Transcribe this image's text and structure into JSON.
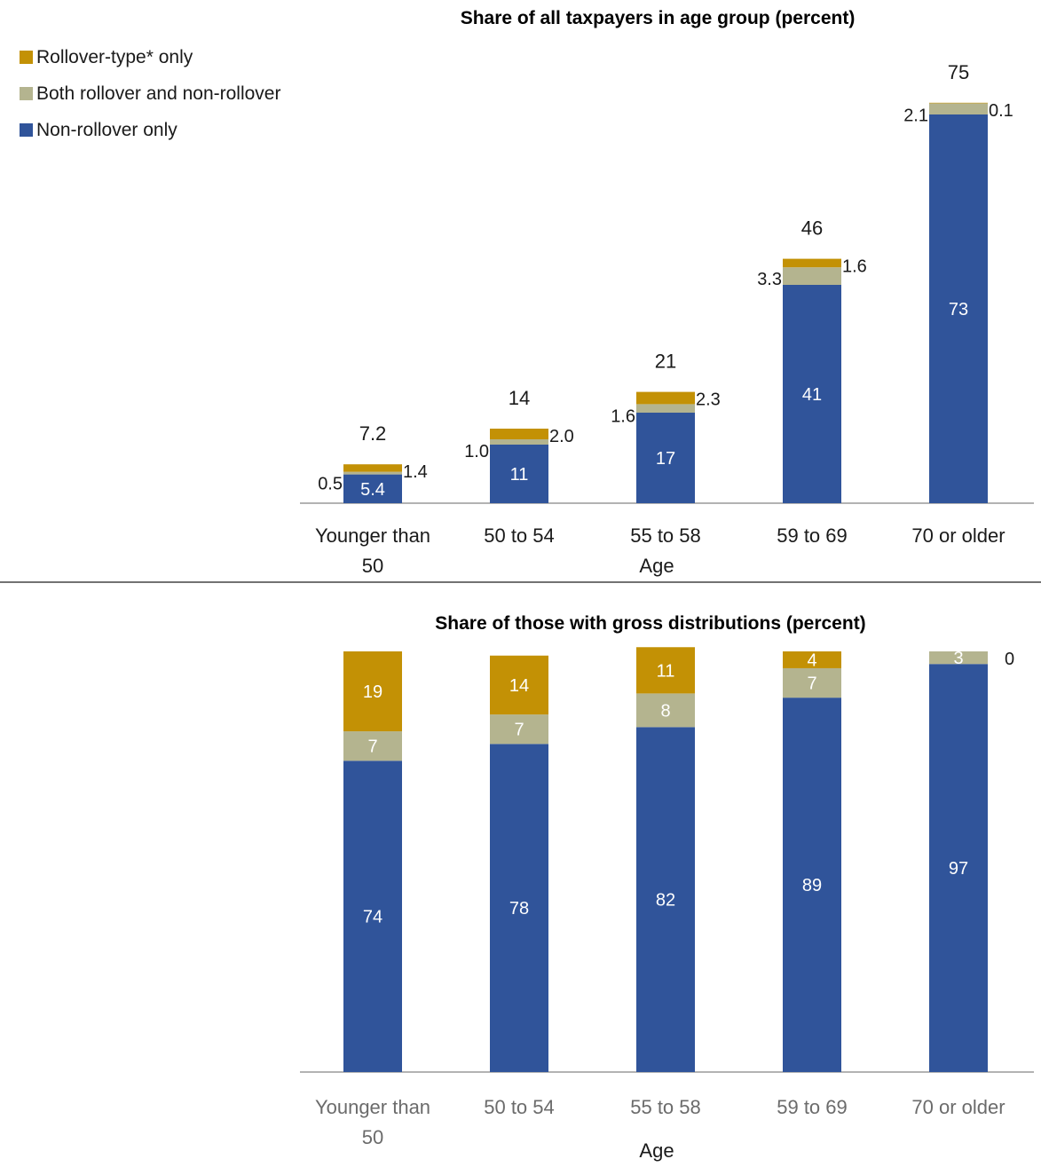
{
  "colors": {
    "non_rollover": "#30549A",
    "both": "#B4B48F",
    "rollover": "#C39105",
    "axis": "#9a9a9a",
    "text": "#1a1a1a",
    "tick_text_bottom": "#6b6b6b"
  },
  "legend": [
    {
      "key": "rollover",
      "label": "Rollover-type* only"
    },
    {
      "key": "both",
      "label": "Both rollover and non-rollover"
    },
    {
      "key": "non_rollover",
      "label": "Non-rollover only"
    }
  ],
  "chart_data": [
    {
      "type": "bar",
      "stacked": true,
      "title": "Share of all taxpayers in age group (percent)",
      "xlabel": "Age",
      "ylabel": "",
      "ylim": [
        0,
        75
      ],
      "categories": [
        "Younger than 50",
        "50 to 54",
        "55 to 58",
        "59 to 69",
        "70 or older"
      ],
      "series": [
        {
          "key": "non_rollover",
          "values": [
            5.4,
            11,
            17,
            41,
            73
          ],
          "labels": [
            "5.4",
            "11",
            "17",
            "41",
            "73"
          ]
        },
        {
          "key": "both",
          "values": [
            0.5,
            1.0,
            1.6,
            3.3,
            2.1
          ],
          "labels": [
            "0.5",
            "1.0",
            "1.6",
            "3.3",
            "2.1"
          ]
        },
        {
          "key": "rollover",
          "values": [
            1.4,
            2.0,
            2.3,
            1.6,
            0.1
          ],
          "labels": [
            "1.4",
            "2.0",
            "2.3",
            "1.6",
            "0.1"
          ]
        }
      ],
      "totals": [
        "7.2",
        "14",
        "21",
        "46",
        "75"
      ],
      "legend_position": "top-left"
    },
    {
      "type": "bar",
      "stacked": true,
      "title": "Share of those with gross distributions (percent)",
      "xlabel": "Age",
      "ylabel": "",
      "ylim": [
        0,
        100
      ],
      "categories": [
        "Younger than 50",
        "50 to 54",
        "55 to 58",
        "59 to 69",
        "70 or older"
      ],
      "series": [
        {
          "key": "non_rollover",
          "values": [
            74,
            78,
            82,
            89,
            97
          ],
          "labels": [
            "74",
            "78",
            "82",
            "89",
            "97"
          ]
        },
        {
          "key": "both",
          "values": [
            7,
            7,
            8,
            7,
            3
          ],
          "labels": [
            "7",
            "7",
            "8",
            "7",
            "3"
          ]
        },
        {
          "key": "rollover",
          "values": [
            19,
            14,
            11,
            4,
            0
          ],
          "labels": [
            "19",
            "14",
            "11",
            "4",
            "0"
          ]
        }
      ]
    }
  ]
}
